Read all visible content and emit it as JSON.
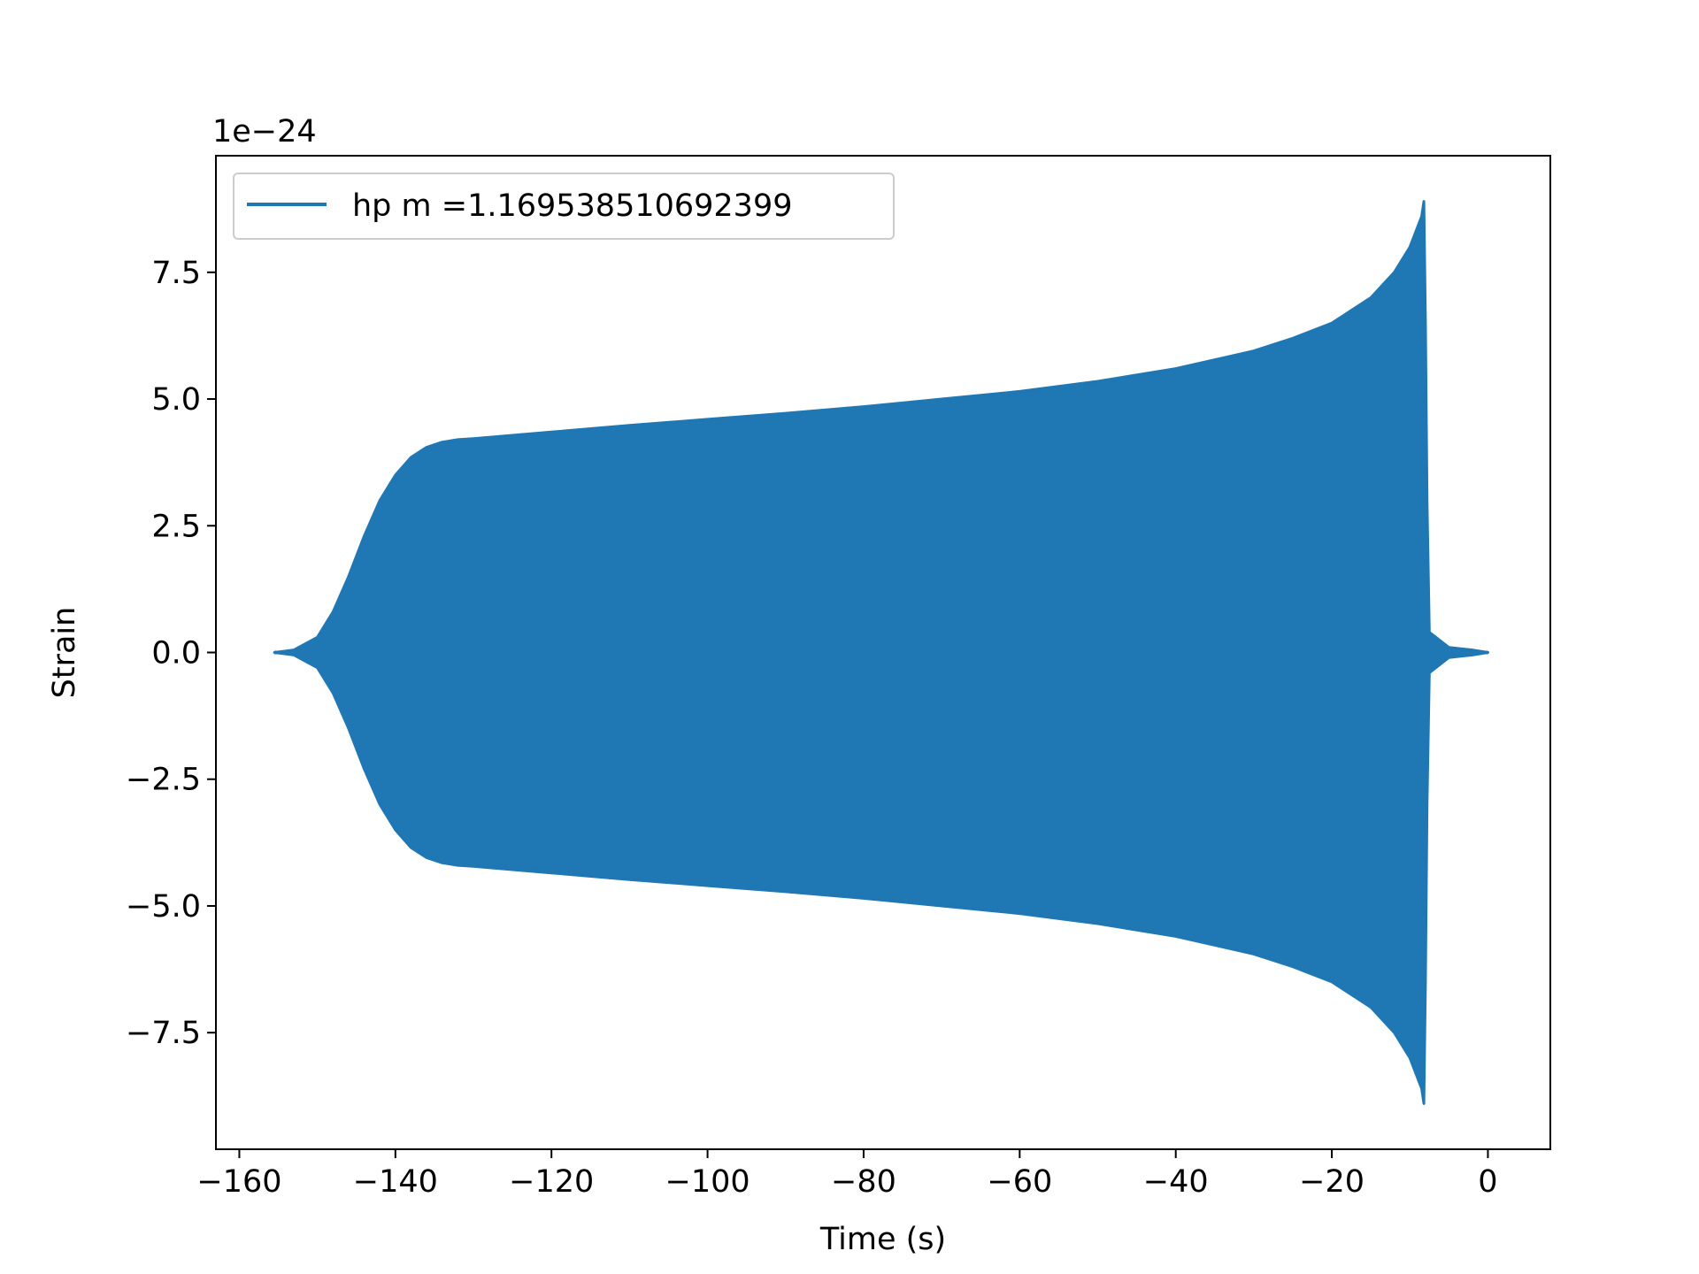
{
  "chart_data": {
    "type": "line",
    "title": "",
    "xlabel": "Time (s)",
    "ylabel": "Strain",
    "y_offset_label": "1e−24",
    "y_scale_exponent": -24,
    "xlim": [
      -163,
      8
    ],
    "ylim": [
      -9.8,
      9.8
    ],
    "x_ticks": [
      -160,
      -140,
      -120,
      -100,
      -80,
      -60,
      -40,
      -20,
      0
    ],
    "x_tick_labels": [
      "−160",
      "−140",
      "−120",
      "−100",
      "−80",
      "−60",
      "−40",
      "−20",
      "0"
    ],
    "y_ticks": [
      -7.5,
      -5.0,
      -2.5,
      0.0,
      2.5,
      5.0,
      7.5
    ],
    "y_tick_labels": [
      "−7.5",
      "−5.0",
      "−2.5",
      "0.0",
      "2.5",
      "5.0",
      "7.5"
    ],
    "grid": false,
    "legend_position": "upper-left",
    "series": [
      {
        "name": "hp m =1.169538510692399",
        "color": "#1f77b4",
        "description_envelope_upper": {
          "x": [
            -155.5,
            -153,
            -150,
            -148,
            -146,
            -144,
            -142,
            -140,
            -138,
            -136,
            -134,
            -132,
            -130,
            -120,
            -110,
            -100,
            -90,
            -80,
            -70,
            -60,
            -50,
            -40,
            -30,
            -25,
            -20,
            -15,
            -12,
            -10,
            -8.5,
            -8.2,
            -8,
            -7.8,
            -7.5,
            -5,
            -2,
            0
          ],
          "y": [
            0.0,
            0.05,
            0.3,
            0.8,
            1.5,
            2.3,
            3.0,
            3.5,
            3.85,
            4.05,
            4.15,
            4.2,
            4.22,
            4.35,
            4.48,
            4.6,
            4.72,
            4.85,
            5.0,
            5.15,
            5.35,
            5.6,
            5.95,
            6.2,
            6.5,
            7.0,
            7.5,
            8.0,
            8.6,
            8.9,
            6.5,
            3.0,
            0.4,
            0.1,
            0.05,
            0.0
          ]
        },
        "description_envelope_lower": {
          "x": [
            -155.5,
            -153,
            -150,
            -148,
            -146,
            -144,
            -142,
            -140,
            -138,
            -136,
            -134,
            -132,
            -130,
            -120,
            -110,
            -100,
            -90,
            -80,
            -70,
            -60,
            -50,
            -40,
            -30,
            -25,
            -20,
            -15,
            -12,
            -10,
            -8.5,
            -8.2,
            -8,
            -7.8,
            -7.5,
            -5,
            -2,
            0
          ],
          "y": [
            0.0,
            -0.05,
            -0.3,
            -0.8,
            -1.5,
            -2.3,
            -3.0,
            -3.5,
            -3.85,
            -4.05,
            -4.15,
            -4.2,
            -4.22,
            -4.35,
            -4.48,
            -4.6,
            -4.72,
            -4.85,
            -5.0,
            -5.15,
            -5.35,
            -5.6,
            -5.95,
            -6.2,
            -6.5,
            -7.0,
            -7.5,
            -8.0,
            -8.6,
            -8.9,
            -6.5,
            -3.0,
            -0.4,
            -0.1,
            -0.05,
            0.0
          ]
        }
      }
    ]
  }
}
